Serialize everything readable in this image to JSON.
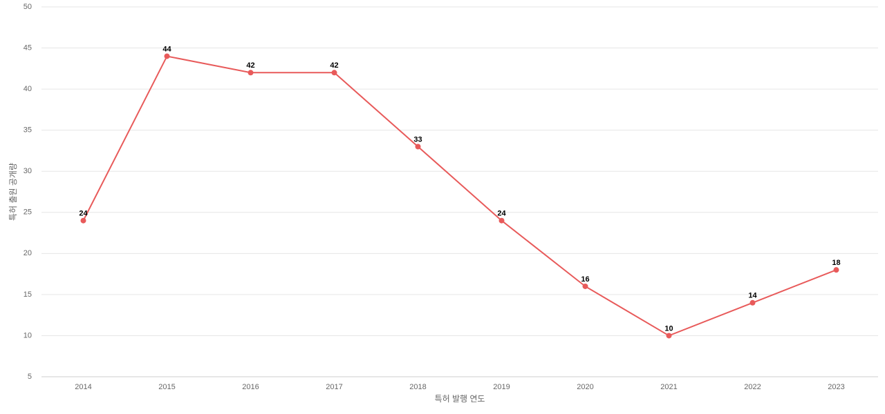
{
  "chart_data": {
    "type": "line",
    "x_label": "특허 발행 연도",
    "y_label": "특허 출원 공개량",
    "categories": [
      "2014",
      "2015",
      "2016",
      "2017",
      "2018",
      "2019",
      "2020",
      "2021",
      "2022",
      "2023"
    ],
    "values": [
      24,
      44,
      42,
      42,
      33,
      24,
      16,
      10,
      14,
      18
    ],
    "color": "#e85a5a",
    "ylim": [
      5,
      50
    ],
    "yticks": [
      5,
      10,
      15,
      20,
      25,
      30,
      35,
      40,
      45,
      50
    ],
    "grid": true
  }
}
